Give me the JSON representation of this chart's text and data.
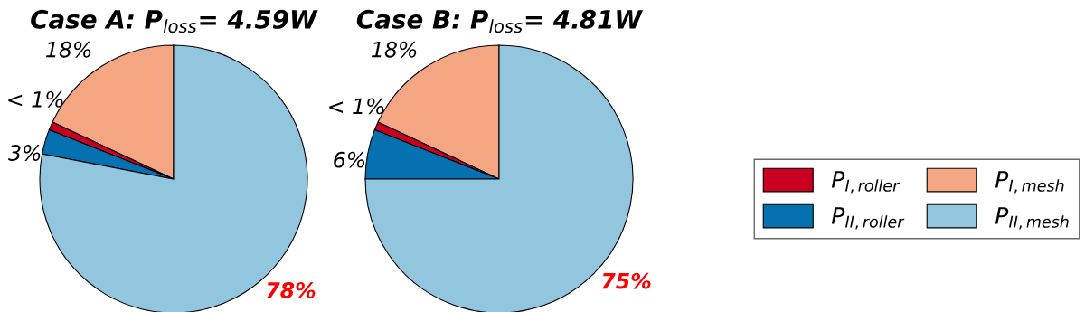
{
  "chart_data": [
    {
      "type": "pie",
      "title": "Case A: P$_{loss}$= 4.59W",
      "categories": [
        "P$_{I,mesh}$",
        "P$_{I,roller}$",
        "P$_{II,roller}$",
        "P$_{II,mesh}$"
      ],
      "values": [
        18,
        1,
        3,
        78
      ],
      "colors": [
        "#f4a582",
        "#ca0020",
        "#0571b0",
        "#92c5de"
      ],
      "value_labels": [
        "18%",
        "< 1%",
        "3%",
        "78%"
      ],
      "legend": "right"
    },
    {
      "type": "pie",
      "title": "Case B: P$_{loss}$= 4.81W",
      "values": [
        18,
        1,
        6,
        75
      ],
      "colors": [
        "#f4a582",
        "#ca0020",
        "#0571b0",
        "#92c5de"
      ],
      "value_labels": [
        "18%",
        "< 1%",
        "6%",
        "75%"
      ]
    }
  ]
}
